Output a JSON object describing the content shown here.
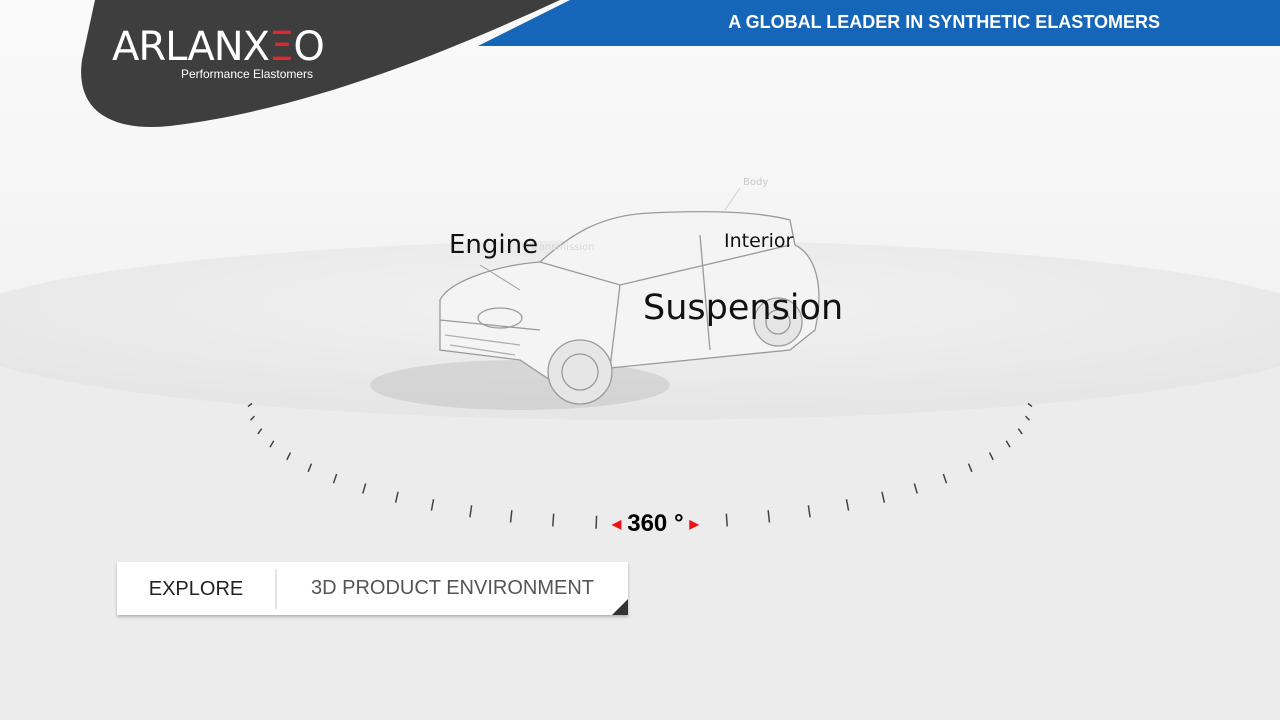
{
  "header": {
    "logo_main": "ARLANX",
    "logo_accent": "Ξ",
    "logo_end": "O",
    "logo_tagline": "Performance Elastomers",
    "banner": "A GLOBAL LEADER IN SYNTHETIC ELASTOMERS"
  },
  "colors": {
    "banner": "#1565b8",
    "logo_swoosh": "#3e3e3e",
    "logo_accent": "#e0282d",
    "rotation_arrows": "#e8141a"
  },
  "scene": {
    "hotspots": [
      {
        "label": "Engine"
      },
      {
        "label": "Interior"
      },
      {
        "label": "Suspension"
      },
      {
        "label": "Body"
      },
      {
        "label": "Transmission"
      }
    ],
    "rotation": {
      "value": "360 °",
      "left_icon": "arrow-left-icon",
      "right_icon": "arrow-right-icon"
    }
  },
  "panel": {
    "explore": "EXPLORE",
    "environment": "3D PRODUCT ENVIRONMENT"
  }
}
